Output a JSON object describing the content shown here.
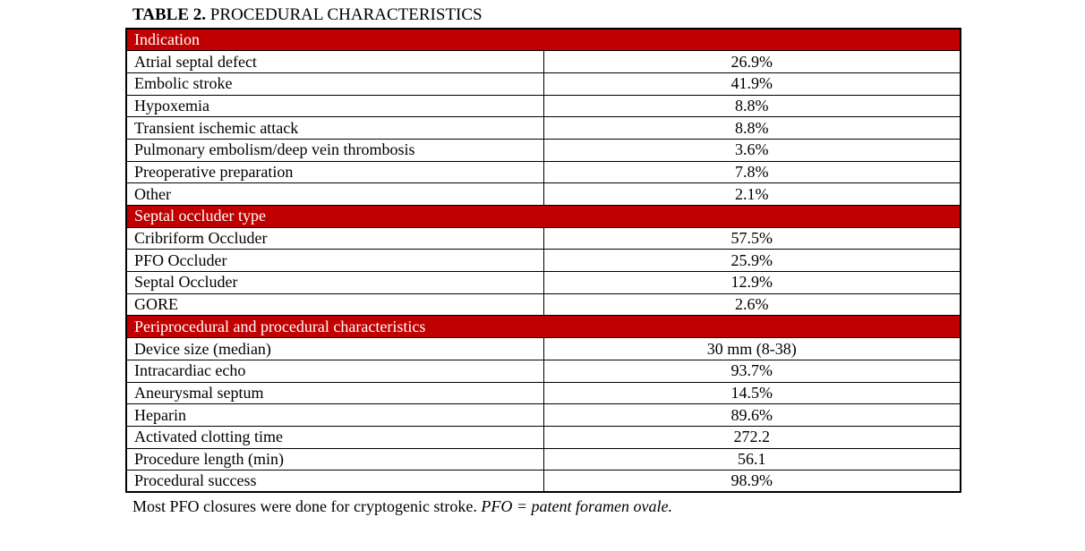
{
  "title": {
    "bold": "TABLE 2.",
    "rest": " PROCEDURAL CHARACTERISTICS"
  },
  "colors": {
    "section_header_bg": "#C00000",
    "section_header_text": "#FFFFFF",
    "border": "#000000",
    "page_bg": "#FFFFFF"
  },
  "table": {
    "sections": [
      {
        "header": "Indication",
        "rows": [
          {
            "label": "Atrial septal defect",
            "value": "26.9%"
          },
          {
            "label": "Embolic stroke",
            "value": "41.9%"
          },
          {
            "label": "Hypoxemia",
            "value": "8.8%"
          },
          {
            "label": "Transient ischemic attack",
            "value": "8.8%"
          },
          {
            "label": "Pulmonary embolism/deep vein thrombosis",
            "value": "3.6%"
          },
          {
            "label": "Preoperative preparation",
            "value": "7.8%"
          },
          {
            "label": "Other",
            "value": "2.1%"
          }
        ]
      },
      {
        "header": "Septal occluder type",
        "rows": [
          {
            "label": "Cribriform Occluder",
            "value": "57.5%"
          },
          {
            "label": "PFO Occluder",
            "value": "25.9%"
          },
          {
            "label": "Septal Occluder",
            "value": "12.9%"
          },
          {
            "label": "GORE",
            "value": "2.6%"
          }
        ]
      },
      {
        "header": "Periprocedural and procedural characteristics",
        "rows": [
          {
            "label": "Device size (median)",
            "value": "30 mm (8-38)"
          },
          {
            "label": "Intracardiac echo",
            "value": "93.7%"
          },
          {
            "label": "Aneurysmal septum",
            "value": "14.5%"
          },
          {
            "label": "Heparin",
            "value": "89.6%"
          },
          {
            "label": "Activated clotting time",
            "value": "272.2"
          },
          {
            "label": "Procedure length (min)",
            "value": "56.1"
          },
          {
            "label": "Procedural success",
            "value": "98.9%"
          }
        ]
      }
    ]
  },
  "footnote": {
    "regular": "Most PFO closures were done for cryptogenic stroke. ",
    "italic": "PFO = patent foramen ovale."
  }
}
